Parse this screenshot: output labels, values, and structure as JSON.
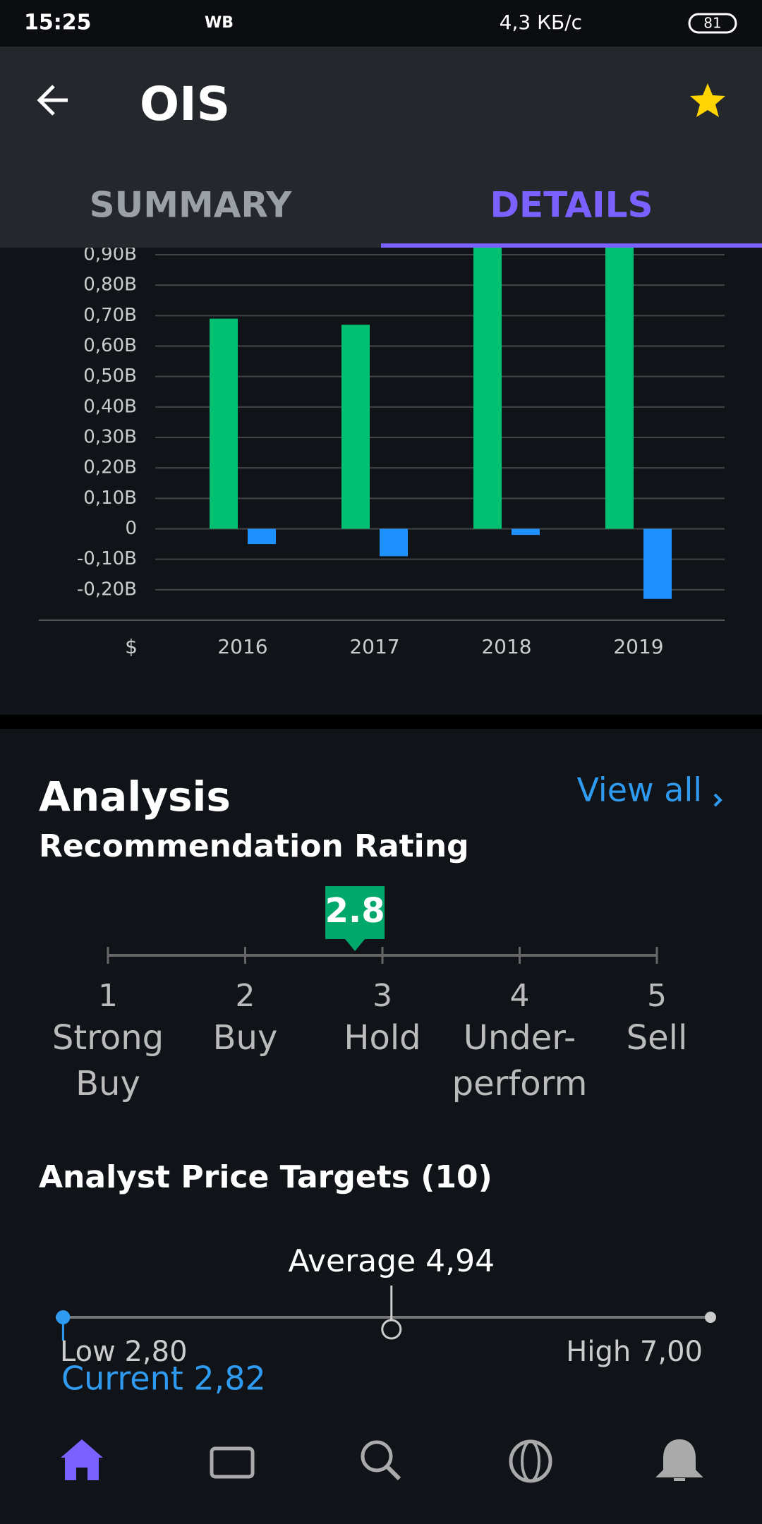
{
  "status_bar": {
    "time": "15:25",
    "carrier_label": "WB",
    "speed": "4,3 КБ/с",
    "battery": "81"
  },
  "header": {
    "title": "OIS",
    "tabs": [
      "SUMMARY",
      "DETAILS"
    ],
    "active_tab": 1
  },
  "chart_data": {
    "type": "bar",
    "categories": [
      "2016",
      "2017",
      "2018",
      "2019"
    ],
    "series": [
      {
        "color": "#00c073",
        "values": [
          0.69,
          0.67,
          0.95,
          0.95
        ]
      },
      {
        "color": "#1e90ff",
        "values": [
          -0.05,
          -0.09,
          -0.02,
          -0.23
        ]
      }
    ],
    "ylim": [
      -0.3,
      0.9
    ],
    "yticks": [
      {
        "value": 0.9,
        "label": "0,90B"
      },
      {
        "value": 0.8,
        "label": "0,80B"
      },
      {
        "value": 0.7,
        "label": "0,70B"
      },
      {
        "value": 0.6,
        "label": "0,60B"
      },
      {
        "value": 0.5,
        "label": "0,50B"
      },
      {
        "value": 0.4,
        "label": "0,40B"
      },
      {
        "value": 0.3,
        "label": "0,30B"
      },
      {
        "value": 0.2,
        "label": "0,20B"
      },
      {
        "value": 0.1,
        "label": "0,10B"
      },
      0,
      {
        "value": -0.1,
        "label": "-0,10B"
      },
      {
        "value": -0.2,
        "label": "-0,20B"
      }
    ],
    "grid": true,
    "unit_label": "$"
  },
  "analysis": {
    "title": "Analysis",
    "view_all": "View all",
    "recommendation": {
      "title": "Recommendation Rating",
      "rating": 2.8,
      "scale": [
        {
          "value": 1,
          "name": [
            "Strong",
            "Buy"
          ]
        },
        {
          "value": 2,
          "name": [
            "Buy"
          ]
        },
        {
          "value": 3,
          "name": [
            "Hold"
          ]
        },
        {
          "value": 4,
          "name": [
            "Under-",
            "perform"
          ]
        },
        {
          "value": 5,
          "name": [
            "Sell"
          ]
        }
      ]
    },
    "price_targets": {
      "title": "Analyst Price Targets (10)",
      "low": {
        "value": 2.8,
        "label": "Low 2,80"
      },
      "average": {
        "value": 4.94,
        "label": "Average 4,94"
      },
      "high": {
        "value": 7.0,
        "label": "High 7,00"
      },
      "current": {
        "value": 2.82,
        "label": "Current 2,82"
      }
    }
  }
}
